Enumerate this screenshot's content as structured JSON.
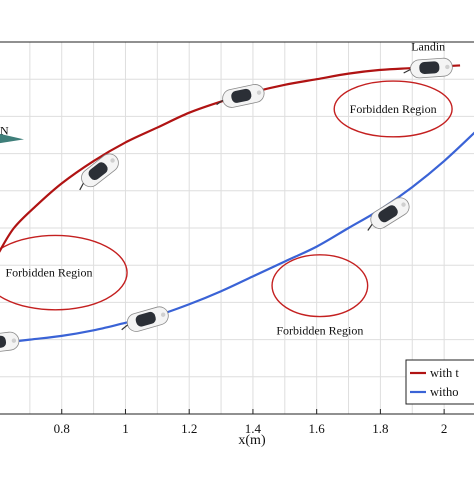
{
  "chart_data": {
    "type": "line",
    "xlabel": "x(m)",
    "xlim": [
      0.6,
      2.1
    ],
    "x_ticks": [
      0.8,
      1,
      1.2,
      1.4,
      1.6,
      1.8,
      2
    ],
    "x_tick_labels": [
      "0.8",
      "1",
      "1.2",
      "1.4",
      "1.6",
      "1.8",
      "2"
    ],
    "ylim": [
      0,
      1
    ],
    "grid": true,
    "legend_position": "bottom-right",
    "series": [
      {
        "name": "with t",
        "color": "#b01313",
        "x": [
          0.6,
          0.65,
          0.72,
          0.8,
          0.9,
          1.0,
          1.1,
          1.2,
          1.3,
          1.4,
          1.5,
          1.6,
          1.7,
          1.8,
          1.9,
          2.0,
          2.05
        ],
        "y": [
          0.43,
          0.5,
          0.56,
          0.62,
          0.68,
          0.73,
          0.77,
          0.81,
          0.84,
          0.865,
          0.885,
          0.9,
          0.915,
          0.925,
          0.93,
          0.935,
          0.937
        ]
      },
      {
        "name": "witho",
        "color": "#3a63d6",
        "x": [
          0.6,
          0.7,
          0.8,
          0.9,
          1.0,
          1.1,
          1.2,
          1.3,
          1.4,
          1.5,
          1.6,
          1.7,
          1.8,
          1.9,
          2.0,
          2.1
        ],
        "y": [
          0.19,
          0.2,
          0.21,
          0.225,
          0.245,
          0.265,
          0.295,
          0.33,
          0.37,
          0.41,
          0.45,
          0.5,
          0.55,
          0.61,
          0.68,
          0.76
        ]
      }
    ],
    "annotations": [
      {
        "text": "Landin",
        "x": 1.95,
        "y": 0.99
      },
      {
        "text": "N",
        "x": 0.62,
        "y": 0.765
      }
    ],
    "forbidden_regions": [
      {
        "label": "Forbidden Region",
        "cx": 1.84,
        "cy": 0.82,
        "rx": 0.185,
        "ry": 0.075
      },
      {
        "label": "Forbidden Region",
        "cx": 0.78,
        "cy": 0.38,
        "rx": 0.225,
        "ry": 0.1
      },
      {
        "label": "Forbidden Region",
        "cx": 1.61,
        "cy": 0.345,
        "rx": 0.15,
        "ry": 0.083
      }
    ],
    "vehicles": [
      {
        "x": 0.6,
        "y": 0.192,
        "angle": -7
      },
      {
        "x": 0.92,
        "y": 0.655,
        "angle": -38
      },
      {
        "x": 1.07,
        "y": 0.255,
        "angle": -16
      },
      {
        "x": 1.37,
        "y": 0.855,
        "angle": -12
      },
      {
        "x": 1.83,
        "y": 0.54,
        "angle": -32
      },
      {
        "x": 1.96,
        "y": 0.93,
        "angle": -4
      }
    ]
  }
}
